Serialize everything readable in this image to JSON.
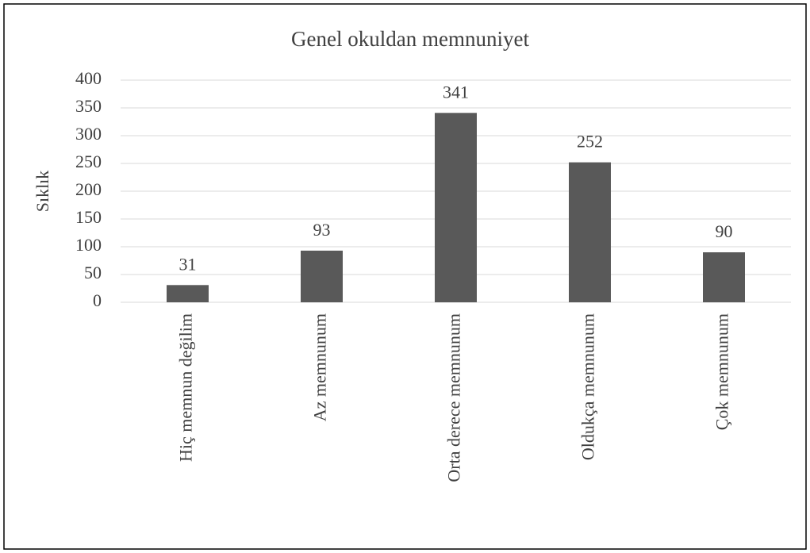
{
  "chart_data": {
    "type": "bar",
    "title": "Genel okuldan memnuniyet",
    "y_label": "Sıklık",
    "categories": [
      "Hiç memnun değilim",
      "Az memnunum",
      "Orta derece memnunum",
      "Oldukça memnunum",
      "Çok memnunum"
    ],
    "values": [
      31,
      93,
      341,
      252,
      90
    ],
    "color": "#595959",
    "ylim": [
      0,
      400
    ],
    "yticks": [
      0,
      50,
      100,
      150,
      200,
      250,
      300,
      350,
      400
    ],
    "grid": true
  }
}
